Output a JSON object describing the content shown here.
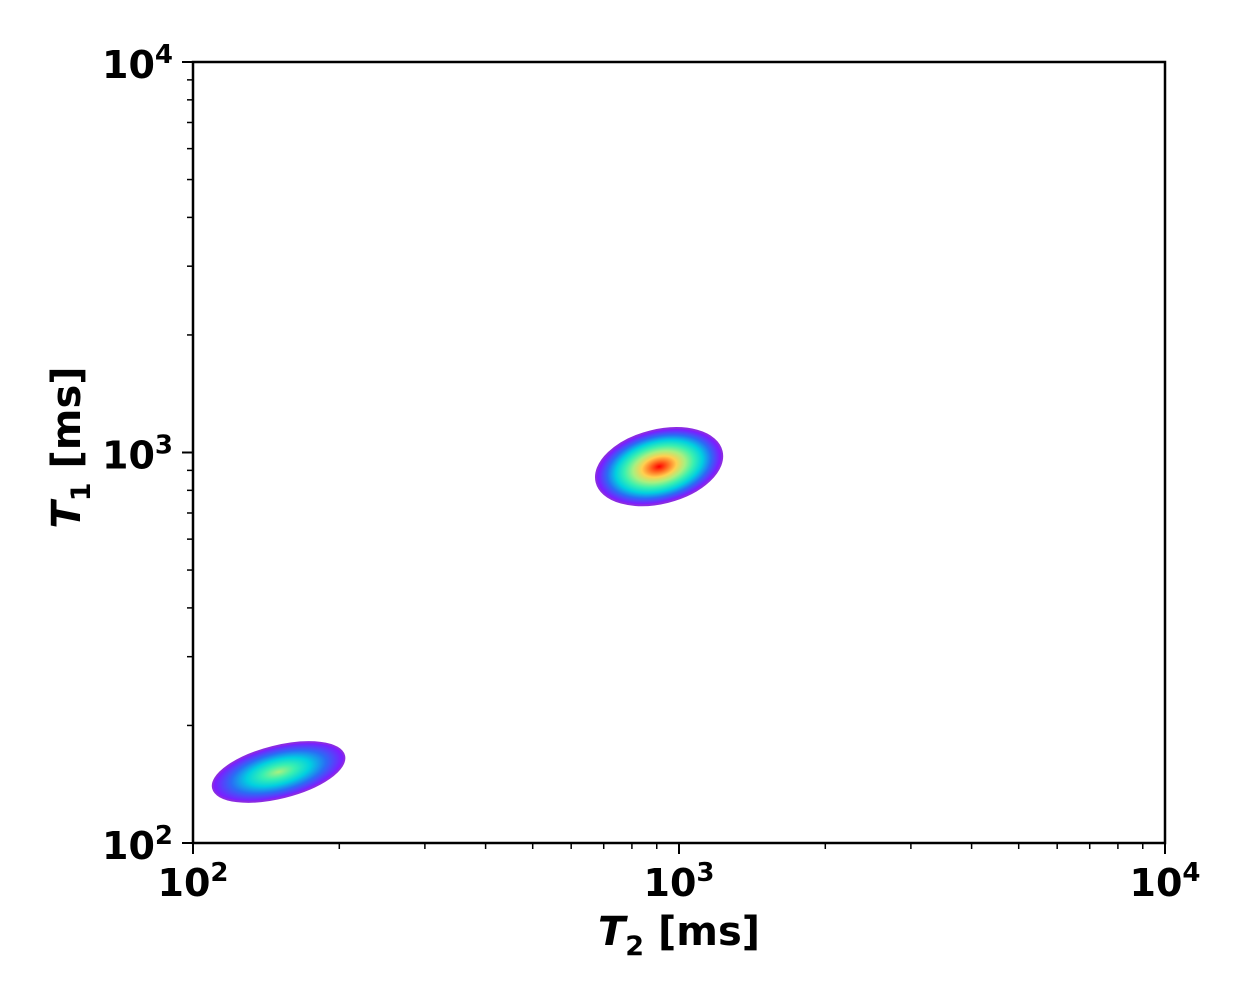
{
  "chart_data": {
    "type": "heatmap",
    "title": "",
    "x_scale": "log",
    "y_scale": "log",
    "xlim": [
      100,
      10000
    ],
    "ylim": [
      100,
      10000
    ],
    "xlabel": {
      "symbol": "T",
      "subscript": "2",
      "unit": "[ms]"
    },
    "ylabel": {
      "symbol": "T",
      "subscript": "1",
      "unit": "[ms]"
    },
    "x_ticks": [
      {
        "value": 100,
        "base": "10",
        "exp": "2"
      },
      {
        "value": 1000,
        "base": "10",
        "exp": "3"
      },
      {
        "value": 10000,
        "base": "10",
        "exp": "4"
      }
    ],
    "y_ticks": [
      {
        "value": 100,
        "base": "10",
        "exp": "2"
      },
      {
        "value": 1000,
        "base": "10",
        "exp": "3"
      },
      {
        "value": 10000,
        "base": "10",
        "exp": "4"
      }
    ],
    "grid": false,
    "legend": "none",
    "colormap": "rainbow",
    "peaks": [
      {
        "t2": 910,
        "t1": 920,
        "t2_range": [
          690,
          1270
        ],
        "t1_range": [
          730,
          1120
        ],
        "tilt": "positive",
        "peak_intensity": 1.0
      },
      {
        "t2": 150,
        "t1": 152,
        "t2_range": [
          115,
          218
        ],
        "t1_range": [
          130,
          176
        ],
        "tilt": "positive",
        "peak_intensity": 0.55
      }
    ],
    "colors": {
      "axis": "#000000",
      "colormap_stops": [
        "#7a1fff",
        "#2a6cf5",
        "#00d0e0",
        "#39f0b0",
        "#a8f080",
        "#ffd050",
        "#ff6b20",
        "#ff0000"
      ]
    }
  }
}
